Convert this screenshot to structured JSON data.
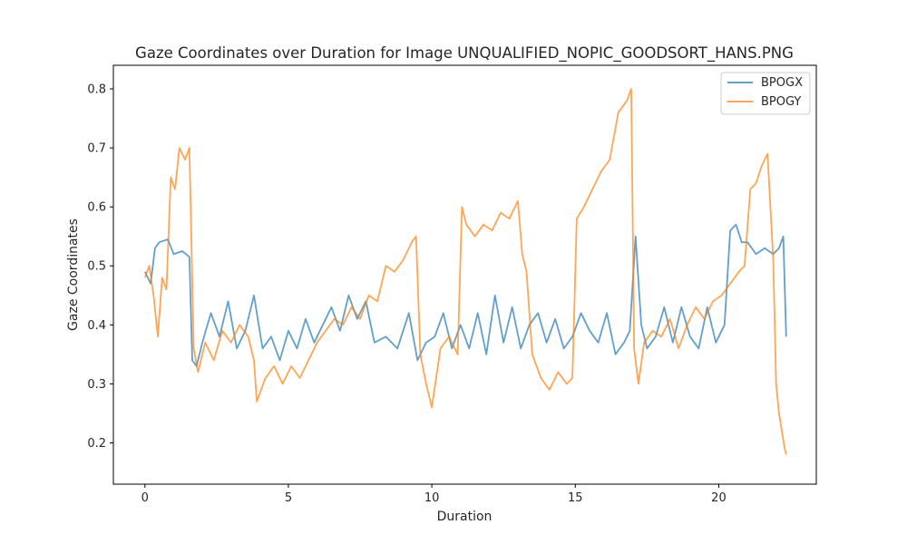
{
  "chart_data": {
    "type": "line",
    "title": "Gaze Coordinates over Duration for Image UNQUALIFIED_NOPIC_GOODSORT_HANS.PNG",
    "xlabel": "Duration",
    "ylabel": "Gaze Coordinates",
    "xlim": [
      -1.1,
      23.4
    ],
    "ylim": [
      0.13,
      0.84
    ],
    "xticks": [
      0,
      5,
      10,
      15,
      20
    ],
    "yticks": [
      0.2,
      0.3,
      0.4,
      0.5,
      0.6,
      0.7,
      0.8
    ],
    "grid": false,
    "legend": {
      "placement": "top-right"
    },
    "series": [
      {
        "name": "BPOGX",
        "color": "#1f77b4",
        "x": [
          0.0,
          0.2,
          0.35,
          0.5,
          0.8,
          1.0,
          1.3,
          1.55,
          1.65,
          1.8,
          2.0,
          2.3,
          2.6,
          2.9,
          3.2,
          3.5,
          3.8,
          4.1,
          4.4,
          4.7,
          5.0,
          5.3,
          5.6,
          5.9,
          6.2,
          6.5,
          6.8,
          7.1,
          7.4,
          7.7,
          8.0,
          8.4,
          8.8,
          9.2,
          9.5,
          9.8,
          10.1,
          10.4,
          10.7,
          11.0,
          11.3,
          11.6,
          11.9,
          12.2,
          12.5,
          12.8,
          13.1,
          13.4,
          13.7,
          14.0,
          14.3,
          14.6,
          14.9,
          15.2,
          15.5,
          15.8,
          16.1,
          16.4,
          16.7,
          16.9,
          17.1,
          17.3,
          17.5,
          17.8,
          18.1,
          18.4,
          18.7,
          19.0,
          19.3,
          19.6,
          19.9,
          20.2,
          20.4,
          20.6,
          20.8,
          21.0,
          21.3,
          21.6,
          21.9,
          22.1,
          22.25,
          22.35
        ],
        "y": [
          0.49,
          0.47,
          0.53,
          0.54,
          0.545,
          0.52,
          0.525,
          0.515,
          0.34,
          0.33,
          0.37,
          0.42,
          0.38,
          0.44,
          0.36,
          0.39,
          0.45,
          0.36,
          0.38,
          0.34,
          0.39,
          0.36,
          0.41,
          0.37,
          0.4,
          0.43,
          0.39,
          0.45,
          0.41,
          0.44,
          0.37,
          0.38,
          0.36,
          0.42,
          0.34,
          0.37,
          0.38,
          0.42,
          0.36,
          0.4,
          0.36,
          0.42,
          0.35,
          0.45,
          0.37,
          0.43,
          0.36,
          0.4,
          0.42,
          0.37,
          0.41,
          0.36,
          0.38,
          0.42,
          0.39,
          0.37,
          0.42,
          0.35,
          0.37,
          0.39,
          0.55,
          0.4,
          0.36,
          0.38,
          0.43,
          0.37,
          0.43,
          0.38,
          0.36,
          0.43,
          0.37,
          0.4,
          0.56,
          0.57,
          0.54,
          0.54,
          0.52,
          0.53,
          0.52,
          0.53,
          0.55,
          0.38
        ]
      },
      {
        "name": "BPOGY",
        "color": "#ff7f0e",
        "x": [
          0.0,
          0.15,
          0.3,
          0.45,
          0.6,
          0.75,
          0.9,
          1.05,
          1.2,
          1.4,
          1.55,
          1.7,
          1.85,
          2.1,
          2.4,
          2.7,
          3.0,
          3.3,
          3.6,
          3.8,
          3.9,
          4.2,
          4.5,
          4.8,
          5.1,
          5.4,
          5.7,
          6.0,
          6.3,
          6.6,
          6.9,
          7.2,
          7.5,
          7.8,
          8.1,
          8.4,
          8.7,
          9.0,
          9.3,
          9.45,
          9.6,
          9.8,
          10.0,
          10.3,
          10.6,
          10.9,
          11.05,
          11.2,
          11.5,
          11.8,
          12.1,
          12.4,
          12.7,
          13.0,
          13.15,
          13.3,
          13.5,
          13.8,
          14.1,
          14.4,
          14.7,
          14.9,
          15.05,
          15.3,
          15.6,
          15.9,
          16.2,
          16.5,
          16.8,
          16.95,
          17.05,
          17.2,
          17.4,
          17.7,
          18.0,
          18.3,
          18.6,
          18.9,
          19.2,
          19.5,
          19.8,
          20.1,
          20.4,
          20.7,
          20.9,
          21.1,
          21.3,
          21.5,
          21.7,
          21.9,
          22.0,
          22.1,
          22.2,
          22.3,
          22.35
        ],
        "y": [
          0.48,
          0.5,
          0.45,
          0.38,
          0.48,
          0.46,
          0.65,
          0.63,
          0.7,
          0.68,
          0.7,
          0.36,
          0.32,
          0.37,
          0.34,
          0.39,
          0.37,
          0.4,
          0.38,
          0.34,
          0.27,
          0.31,
          0.33,
          0.3,
          0.33,
          0.31,
          0.34,
          0.37,
          0.39,
          0.41,
          0.4,
          0.43,
          0.41,
          0.45,
          0.44,
          0.5,
          0.49,
          0.51,
          0.54,
          0.55,
          0.35,
          0.3,
          0.26,
          0.36,
          0.38,
          0.35,
          0.6,
          0.57,
          0.55,
          0.57,
          0.56,
          0.59,
          0.58,
          0.61,
          0.52,
          0.49,
          0.35,
          0.31,
          0.29,
          0.32,
          0.3,
          0.31,
          0.58,
          0.6,
          0.63,
          0.66,
          0.68,
          0.76,
          0.78,
          0.8,
          0.36,
          0.3,
          0.37,
          0.39,
          0.38,
          0.41,
          0.36,
          0.4,
          0.43,
          0.41,
          0.44,
          0.45,
          0.47,
          0.49,
          0.5,
          0.63,
          0.64,
          0.67,
          0.69,
          0.51,
          0.3,
          0.25,
          0.22,
          0.19,
          0.18
        ]
      }
    ]
  }
}
